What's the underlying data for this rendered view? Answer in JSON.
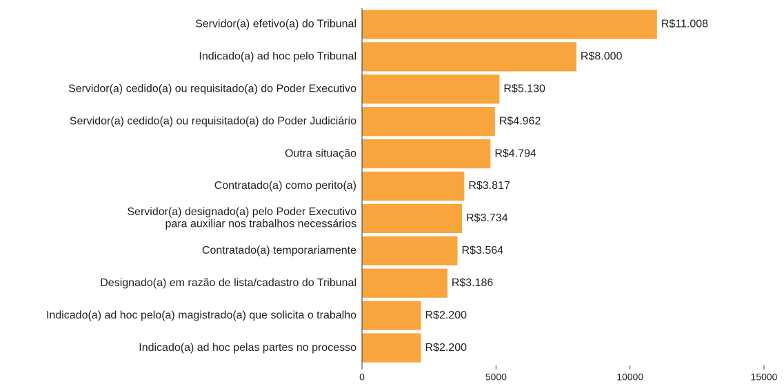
{
  "chart_data": {
    "type": "barh",
    "categories": [
      "Servidor(a) efetivo(a) do Tribunal",
      "Indicado(a) ad hoc pelo Tribunal",
      "Servidor(a) cedido(a) ou requisitado(a) do Poder Executivo",
      "Servidor(a) cedido(a) ou requisitado(a) do Poder Judiciário",
      "Outra situação",
      "Contratado(a) como perito(a)",
      "Servidor(a) designado(a) pelo Poder Executivo\npara auxiliar nos trabalhos necessários",
      "Contratado(a) temporariamente",
      "Designado(a) em razão de lista/cadastro do Tribunal",
      "Indicado(a) ad hoc pelo(a) magistrado(a) que solicita o trabalho",
      "Indicado(a) ad hoc pelas partes no processo"
    ],
    "values": [
      11008,
      8000,
      5130,
      4962,
      4794,
      3817,
      3734,
      3564,
      3186,
      2200,
      2200
    ],
    "value_labels": [
      "R$11.008",
      "R$8.000",
      "R$5.130",
      "R$4.962",
      "R$4.794",
      "R$3.817",
      "R$3.734",
      "R$3.564",
      "R$3.186",
      "R$2.200",
      "R$2.200"
    ],
    "color": "#f8a53e",
    "xlim": [
      0,
      15000
    ],
    "xticks": [
      0,
      5000,
      10000,
      15000
    ]
  }
}
